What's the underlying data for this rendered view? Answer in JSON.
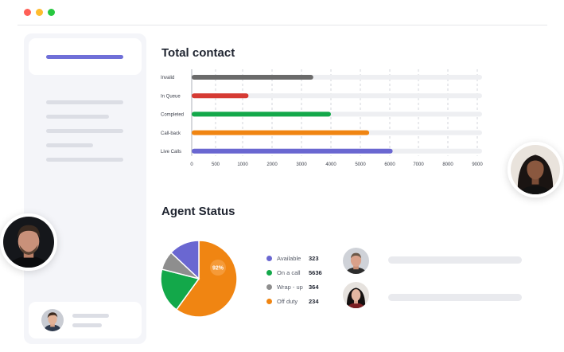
{
  "window": {
    "controls": [
      "close",
      "minimize",
      "maximize"
    ]
  },
  "colors": {
    "accent": "#6f6fd8",
    "invalid": "#6b6b6b",
    "in_queue": "#d63b34",
    "completed": "#13a84a",
    "call_back": "#f08512",
    "live_calls": "#6a67d1",
    "available": "#6a67d1",
    "on_a_call": "#13a84a",
    "wrap_up": "#8e8e8e",
    "off_duty": "#f08512"
  },
  "total_contact": {
    "title": "Total contact"
  },
  "agent_status": {
    "title": "Agent Status",
    "legend": [
      {
        "label": "Available",
        "value": "323",
        "color": "#6a67d1"
      },
      {
        "label": "On a call",
        "value": "5636",
        "color": "#13a84a"
      },
      {
        "label": "Wrap - up",
        "value": "364",
        "color": "#8e8e8e"
      },
      {
        "label": "Off duty",
        "value": "234",
        "color": "#f08512"
      }
    ],
    "pie_label": "92%"
  },
  "chart_data": [
    {
      "type": "bar",
      "orientation": "horizontal",
      "title": "Total contact",
      "categories": [
        "Invalid",
        "In Queue",
        "Completed",
        "Call-back",
        "Live Calls"
      ],
      "values": [
        3400,
        1200,
        4000,
        5300,
        6100
      ],
      "colors": [
        "#6b6b6b",
        "#d63b34",
        "#13a84a",
        "#f08512",
        "#6a67d1"
      ],
      "xlim": [
        0,
        9000
      ],
      "xticks": [
        "0",
        "500",
        "1000",
        "2000",
        "3000",
        "4000",
        "5000",
        "6000",
        "7000",
        "8000",
        "9000"
      ],
      "grid": true
    },
    {
      "type": "pie",
      "title": "Agent Status",
      "slices": [
        {
          "label": "Off duty",
          "value": 60,
          "color": "#f08512"
        },
        {
          "label": "On a call",
          "value": 19,
          "color": "#13a84a"
        },
        {
          "label": "Wrap - up",
          "value": 8,
          "color": "#8e8e8e"
        },
        {
          "label": "Available",
          "value": 13,
          "color": "#6a67d1"
        }
      ],
      "annotation": "92%"
    }
  ]
}
